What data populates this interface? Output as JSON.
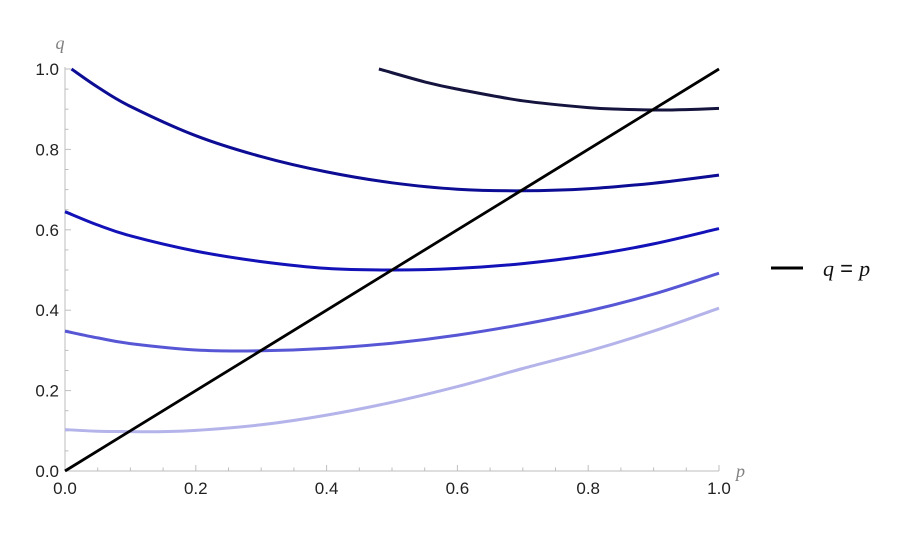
{
  "chart_data": {
    "type": "line",
    "xlabel": "p",
    "ylabel": "q",
    "xlim": [
      0,
      1
    ],
    "ylim": [
      0,
      1
    ],
    "x_ticks": [
      "0.0",
      "0.2",
      "0.4",
      "0.6",
      "0.8",
      "1.0"
    ],
    "y_ticks": [
      "0.0",
      "0.2",
      "0.4",
      "0.6",
      "0.8",
      "1.0"
    ],
    "grid": false,
    "legend_position": "right",
    "legend": {
      "label_left": "q",
      "label_eq": " = ",
      "label_right": "p"
    },
    "series": [
      {
        "color": "#b4b4ea",
        "x": [
          0.0,
          0.05,
          0.1,
          0.15,
          0.2,
          0.3,
          0.4,
          0.5,
          0.6,
          0.7,
          0.8,
          0.9,
          1.0
        ],
        "y": [
          0.103,
          0.099,
          0.098,
          0.098,
          0.101,
          0.115,
          0.139,
          0.171,
          0.21,
          0.255,
          0.298,
          0.348,
          0.405
        ]
      },
      {
        "color": "#5757d6",
        "x": [
          0.0,
          0.05,
          0.1,
          0.2,
          0.3,
          0.4,
          0.5,
          0.6,
          0.7,
          0.8,
          0.9,
          1.0
        ],
        "y": [
          0.348,
          0.331,
          0.317,
          0.301,
          0.299,
          0.305,
          0.318,
          0.338,
          0.365,
          0.398,
          0.44,
          0.492
        ]
      },
      {
        "color": "#1212b8",
        "x": [
          0.0,
          0.05,
          0.1,
          0.2,
          0.3,
          0.4,
          0.5,
          0.6,
          0.7,
          0.8,
          0.9,
          1.0
        ],
        "y": [
          0.645,
          0.612,
          0.585,
          0.547,
          0.521,
          0.504,
          0.5,
          0.504,
          0.516,
          0.536,
          0.565,
          0.603
        ]
      },
      {
        "color": "#0c0c94",
        "x": [
          0.01,
          0.05,
          0.1,
          0.2,
          0.3,
          0.4,
          0.5,
          0.6,
          0.7,
          0.8,
          0.9,
          1.0
        ],
        "y": [
          1.0,
          0.955,
          0.907,
          0.834,
          0.782,
          0.744,
          0.717,
          0.701,
          0.697,
          0.702,
          0.716,
          0.736
        ]
      },
      {
        "color": "#14143e",
        "x": [
          0.48,
          0.55,
          0.6,
          0.7,
          0.8,
          0.85,
          0.9,
          0.95,
          1.0
        ],
        "y": [
          1.0,
          0.968,
          0.95,
          0.921,
          0.904,
          0.9,
          0.898,
          0.899,
          0.902
        ]
      },
      {
        "name": "q = p",
        "color": "#000000",
        "x": [
          0.0,
          1.0
        ],
        "y": [
          0.0,
          1.0
        ]
      }
    ]
  }
}
